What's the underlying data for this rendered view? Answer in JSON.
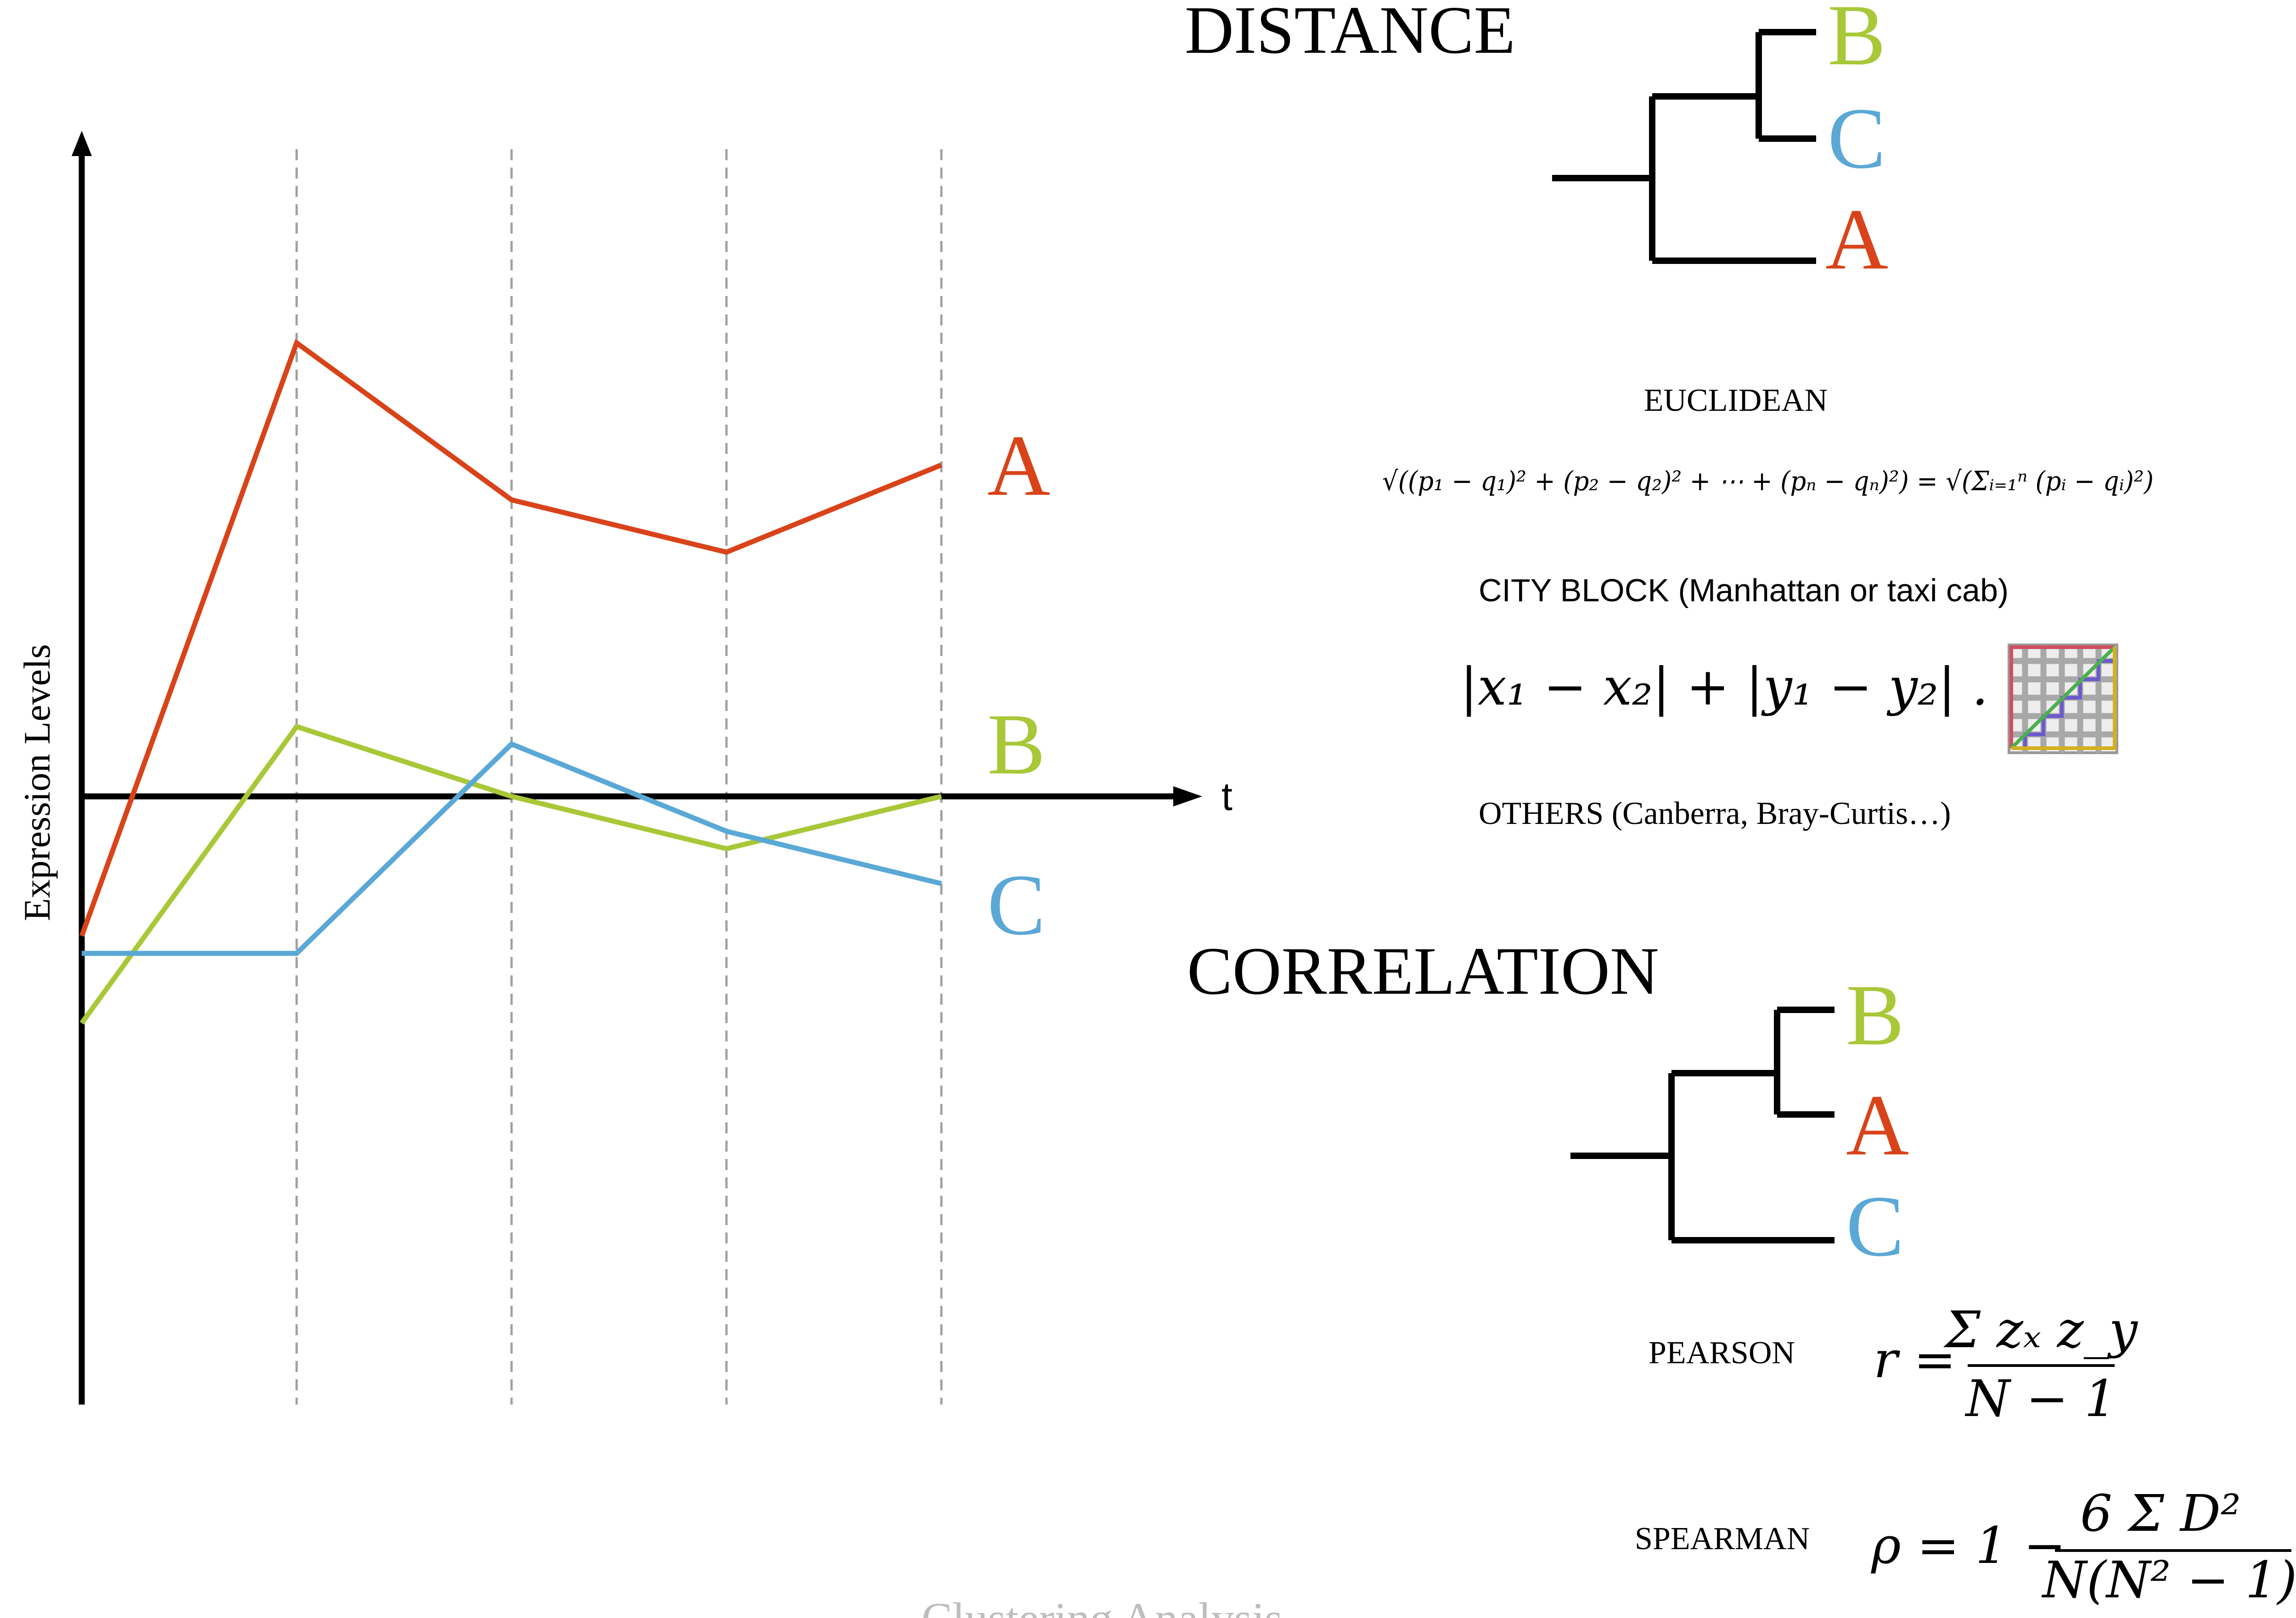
{
  "colors": {
    "A": "#d9431a",
    "B": "#a8c838",
    "C": "#5aa8d6",
    "axis": "#000000",
    "grid": "#a0a0a0",
    "footer": "#bdbdbd"
  },
  "chart_data": {
    "type": "line",
    "xlabel": "t",
    "ylabel": "Expression Levels",
    "x": [
      0,
      1,
      2,
      3,
      4
    ],
    "ylim": [
      -6,
      6
    ],
    "grid": "vertical dashed lines at t = 1, 2, 3, 4",
    "series": [
      {
        "name": "A",
        "values": [
          -1.6,
          5.2,
          3.4,
          2.8,
          3.8
        ]
      },
      {
        "name": "B",
        "values": [
          -2.6,
          0.8,
          0.0,
          -0.6,
          0.0
        ]
      },
      {
        "name": "C",
        "values": [
          -1.8,
          -1.8,
          0.6,
          -0.4,
          -1.0
        ]
      }
    ]
  },
  "distance": {
    "title": "DISTANCE",
    "tree_leaves": [
      "B",
      "C",
      "A"
    ],
    "euclidean": {
      "label": "EUCLIDEAN",
      "formula": "√((p₁ − q₁)² + (p₂ − q₂)² + ⋯ + (pₙ − qₙ)²) = √(Σᵢ₌₁ⁿ (pᵢ − qᵢ)²)"
    },
    "city_block": {
      "label": "CITY BLOCK (Manhattan or taxi cab)",
      "formula": "|x₁ − x₂| + |y₁ − y₂| ."
    },
    "others": "OTHERS (Canberra, Bray-Curtis…)"
  },
  "correlation": {
    "title": "CORRELATION",
    "tree_leaves": [
      "B",
      "A",
      "C"
    ],
    "pearson": {
      "label": "PEARSON",
      "lhs": "r =",
      "numerator": "Σ zₓ z_y",
      "denominator": "N − 1"
    },
    "spearman": {
      "label": "SPEARMAN",
      "lhs": "ρ = 1 −",
      "numerator": "6 Σ D²",
      "denominator": "N(N² − 1)"
    }
  },
  "footer": "Clustering Analysis"
}
